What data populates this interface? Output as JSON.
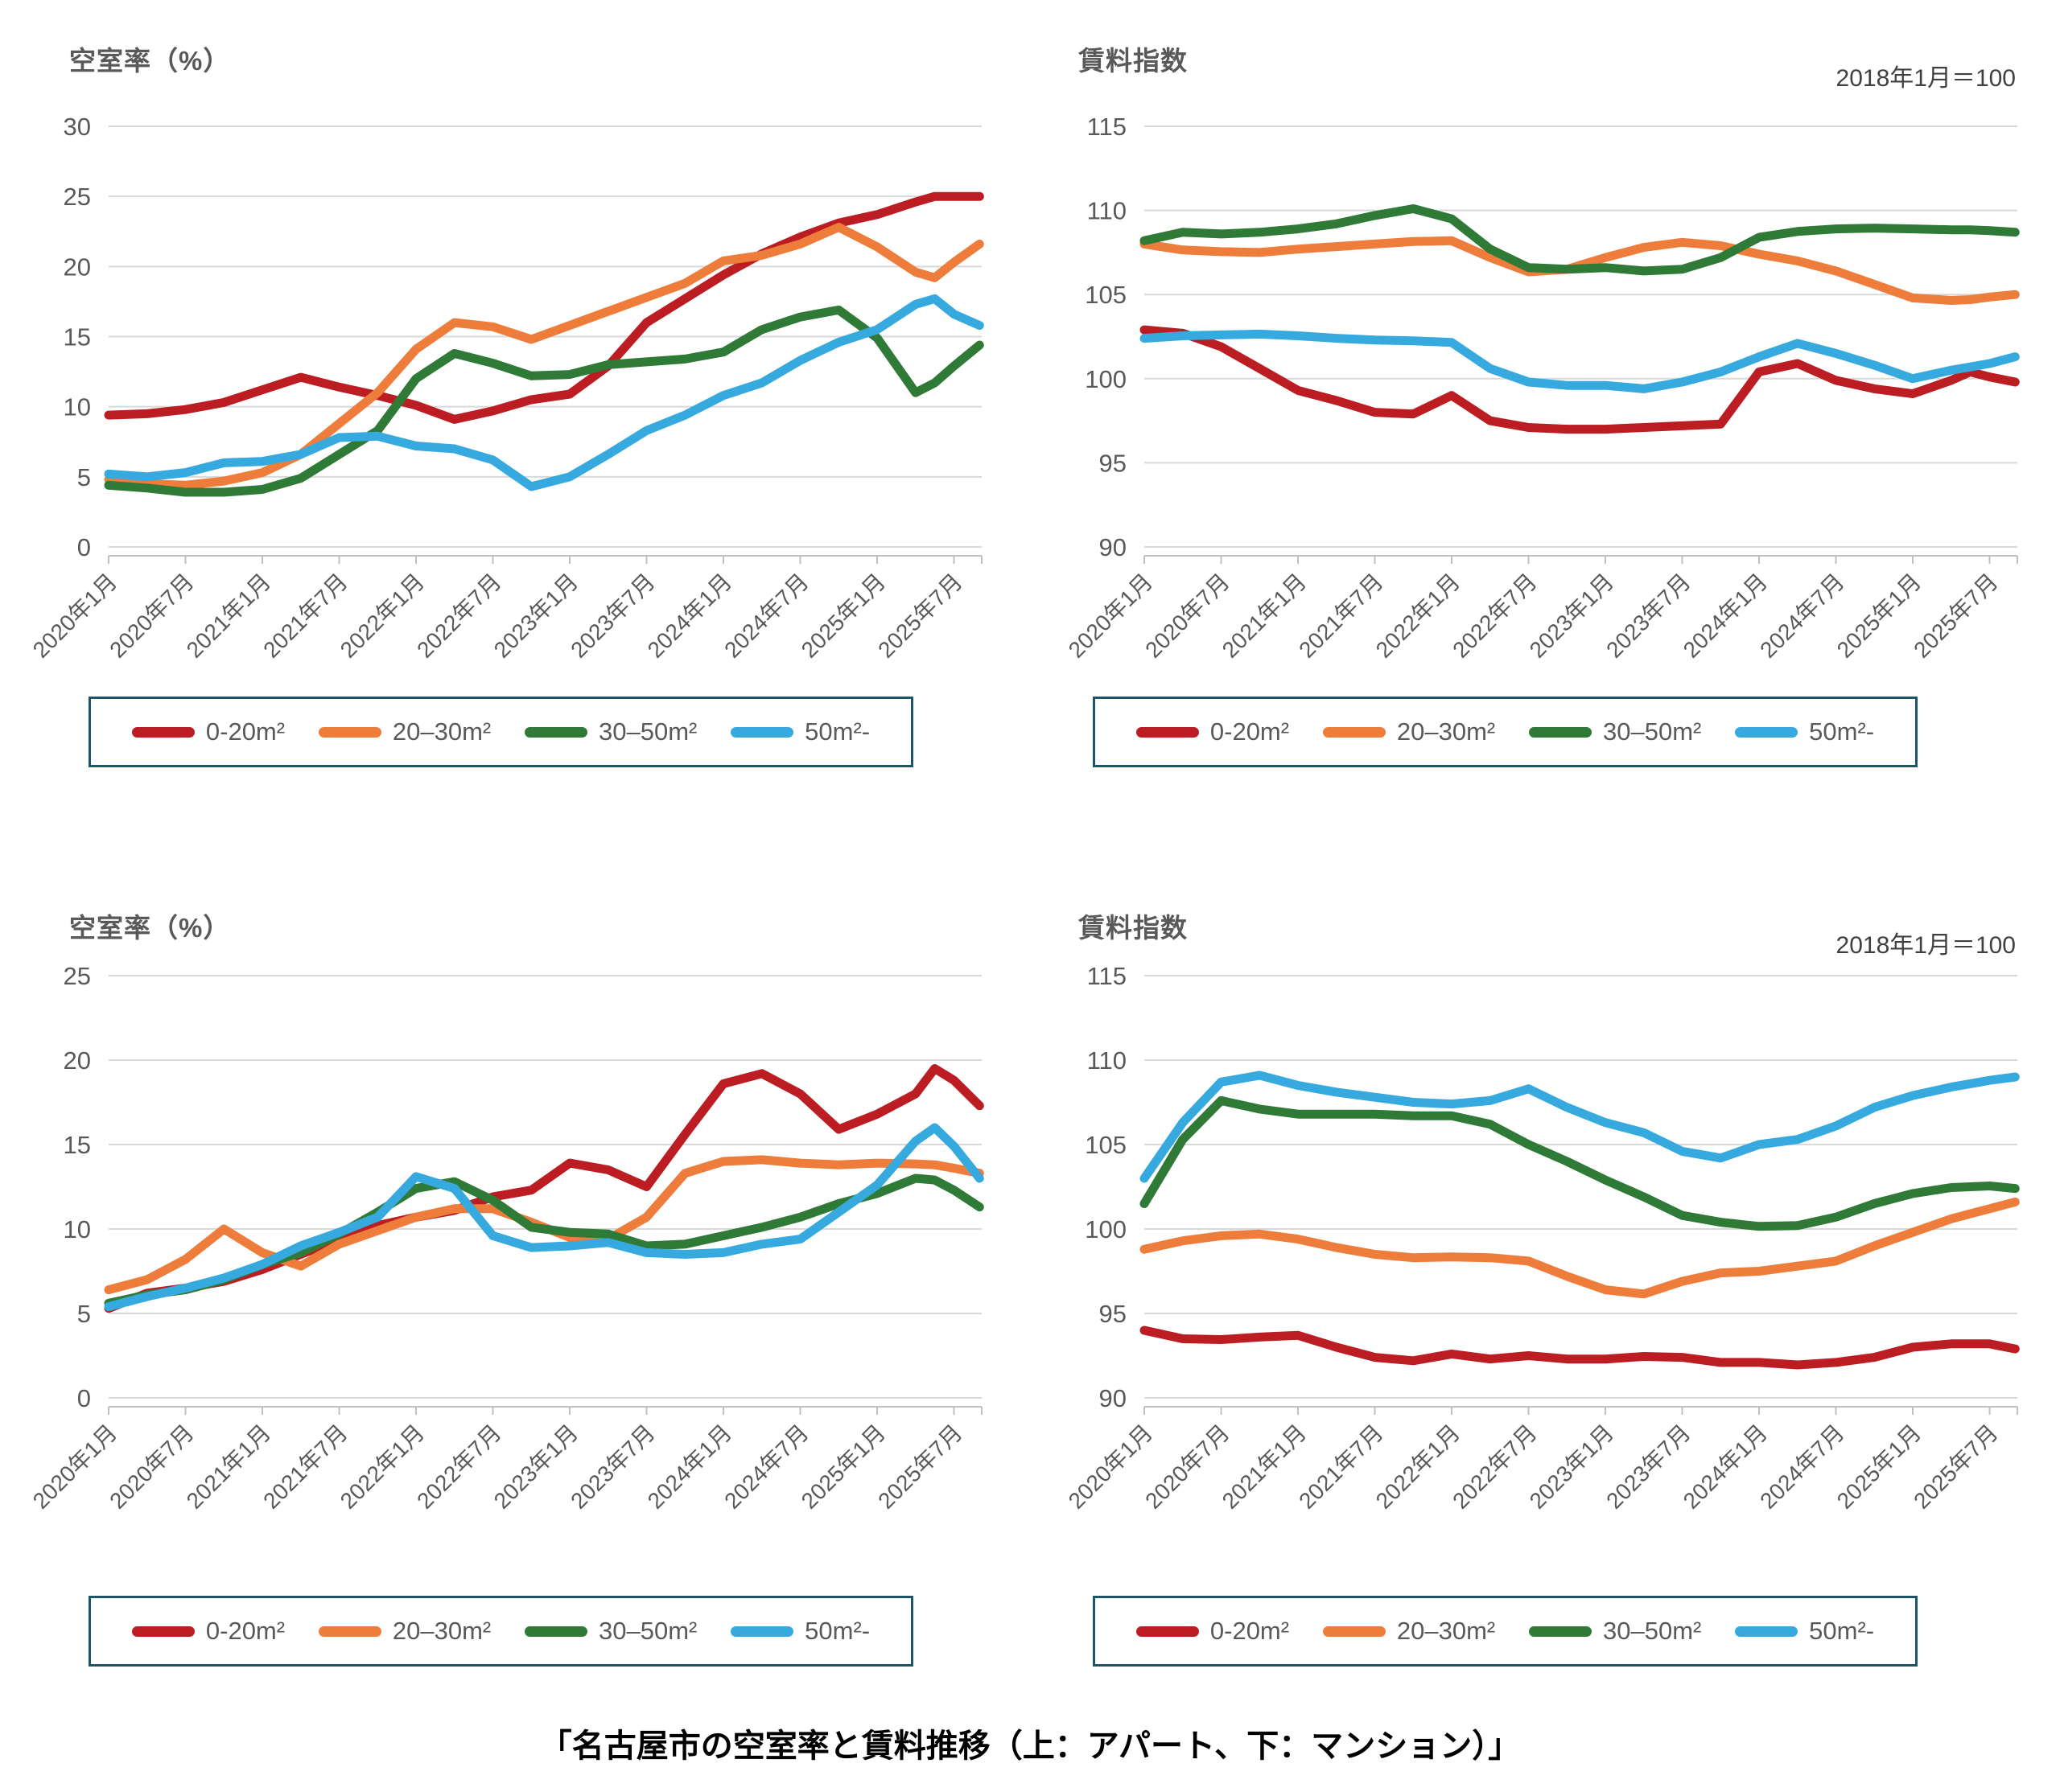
{
  "page": {
    "caption": "「名古屋市の空室率と賃料推移（上：アパート、下：マンション）」"
  },
  "colors": {
    "red": "#bb1d23",
    "orange": "#ee7c3b",
    "green": "#2e7a36",
    "blue": "#36a9de",
    "grid": "#d9d9d9",
    "axis": "#c0c0c0",
    "text": "#595959",
    "legend_border": "#1e5464"
  },
  "legend_items": [
    {
      "label": "0-20m²",
      "color": "red"
    },
    {
      "label": "20–30m²",
      "color": "orange"
    },
    {
      "label": "30–50m²",
      "color": "green"
    },
    {
      "label": "50m²-",
      "color": "blue"
    }
  ],
  "x_tick_labels": [
    "2020年1月",
    "2020年7月",
    "2021年1月",
    "2021年7月",
    "2022年1月",
    "2022年7月",
    "2023年1月",
    "2023年7月",
    "2024年1月",
    "2024年7月",
    "2025年1月",
    "2025年7月"
  ],
  "months": [
    0,
    3,
    6,
    9,
    12,
    15,
    18,
    21,
    24,
    27,
    30,
    33,
    36,
    39,
    42,
    45,
    48,
    51,
    54,
    57,
    60,
    63,
    64.5,
    66,
    68
  ],
  "chart_data": [
    {
      "id": "apartment-vacancy",
      "type": "line",
      "title": "空室率（%）",
      "annotation": "",
      "ylabel": "空室率（%）",
      "ylim": [
        0,
        30
      ],
      "ystep": 5,
      "grid": true,
      "legend_position": "bottom",
      "series": [
        {
          "name": "0-20m²",
          "color": "red",
          "values": [
            9.4,
            9.5,
            9.8,
            10.3,
            11.2,
            12.1,
            11.4,
            10.8,
            10.1,
            9.1,
            9.7,
            10.5,
            10.9,
            12.9,
            16.0,
            17.7,
            19.4,
            20.9,
            22.1,
            23.1,
            23.7,
            24.6,
            25.0,
            25.0,
            25.0
          ]
        },
        {
          "name": "20–30m²",
          "color": "orange",
          "values": [
            4.8,
            4.5,
            4.4,
            4.7,
            5.3,
            6.6,
            8.8,
            11.0,
            14.1,
            16.0,
            15.7,
            14.8,
            15.8,
            16.8,
            17.8,
            18.8,
            20.4,
            20.8,
            21.6,
            22.8,
            21.4,
            19.6,
            19.2,
            20.3,
            21.6
          ]
        },
        {
          "name": "30–50m²",
          "color": "green",
          "values": [
            4.4,
            4.2,
            3.9,
            3.9,
            4.1,
            4.9,
            6.6,
            8.3,
            12.0,
            13.8,
            13.1,
            12.2,
            12.3,
            13.0,
            13.2,
            13.4,
            13.9,
            15.5,
            16.4,
            16.9,
            14.9,
            11.0,
            11.7,
            12.9,
            14.4
          ]
        },
        {
          "name": "50m²-",
          "color": "blue",
          "values": [
            5.2,
            5.0,
            5.3,
            6.0,
            6.1,
            6.6,
            7.8,
            7.9,
            7.2,
            7.0,
            6.2,
            4.3,
            5.0,
            6.6,
            8.3,
            9.4,
            10.8,
            11.7,
            13.3,
            14.6,
            15.5,
            17.3,
            17.7,
            16.6,
            15.8
          ]
        }
      ]
    },
    {
      "id": "apartment-rent-index",
      "type": "line",
      "title": "賃料指数",
      "annotation": "2018年1月＝100",
      "ylabel": "賃料指数",
      "ylim": [
        90,
        115
      ],
      "ystep": 5,
      "grid": true,
      "legend_position": "bottom",
      "series": [
        {
          "name": "0-20m²",
          "color": "red",
          "values": [
            102.9,
            102.7,
            101.9,
            100.6,
            99.3,
            98.7,
            98.0,
            97.9,
            99.0,
            97.5,
            97.1,
            97.0,
            97.0,
            97.1,
            97.2,
            97.3,
            100.4,
            100.9,
            99.9,
            99.4,
            99.1,
            99.9,
            100.4,
            100.1,
            99.8
          ]
        },
        {
          "name": "20–30m²",
          "color": "orange",
          "values": [
            108.0,
            107.65,
            107.55,
            107.5,
            107.7,
            107.85,
            108.0,
            108.15,
            108.2,
            107.2,
            106.35,
            106.5,
            107.2,
            107.8,
            108.1,
            107.9,
            107.4,
            107.0,
            106.4,
            105.6,
            104.8,
            104.65,
            104.7,
            104.85,
            105.0
          ]
        },
        {
          "name": "30–50m²",
          "color": "green",
          "values": [
            108.2,
            108.7,
            108.6,
            108.7,
            108.9,
            109.2,
            109.7,
            110.1,
            109.5,
            107.7,
            106.6,
            106.5,
            106.6,
            106.4,
            106.5,
            107.2,
            108.4,
            108.75,
            108.9,
            108.95,
            108.9,
            108.85,
            108.85,
            108.8,
            108.7
          ]
        },
        {
          "name": "50m²-",
          "color": "blue",
          "values": [
            102.4,
            102.55,
            102.6,
            102.65,
            102.55,
            102.4,
            102.3,
            102.25,
            102.15,
            100.6,
            99.8,
            99.6,
            99.6,
            99.4,
            99.8,
            100.4,
            101.3,
            102.1,
            101.5,
            100.8,
            100.0,
            100.5,
            100.7,
            100.9,
            101.3
          ]
        }
      ]
    },
    {
      "id": "mansion-vacancy",
      "type": "line",
      "title": "空室率（%）",
      "annotation": "",
      "ylabel": "空室率（%）",
      "ylim": [
        0,
        25
      ],
      "ystep": 5,
      "grid": true,
      "legend_position": "bottom",
      "series": [
        {
          "name": "0-20m²",
          "color": "red",
          "values": [
            5.3,
            6.2,
            6.5,
            6.9,
            7.6,
            8.5,
            9.4,
            10.2,
            10.7,
            11.1,
            11.9,
            12.3,
            13.9,
            13.5,
            12.5,
            15.6,
            18.6,
            19.2,
            18.0,
            15.9,
            16.8,
            18.0,
            19.5,
            18.8,
            17.3
          ]
        },
        {
          "name": "20–30m²",
          "color": "orange",
          "values": [
            6.4,
            7.0,
            8.2,
            10.0,
            8.6,
            7.8,
            9.1,
            9.9,
            10.7,
            11.2,
            11.2,
            10.4,
            9.5,
            9.4,
            10.7,
            13.3,
            14.0,
            14.1,
            13.9,
            13.8,
            13.9,
            13.85,
            13.8,
            13.6,
            13.3
          ]
        },
        {
          "name": "30–50m²",
          "color": "green",
          "values": [
            5.6,
            6.1,
            6.4,
            7.0,
            7.9,
            8.6,
            9.7,
            11.0,
            12.4,
            12.8,
            11.7,
            10.1,
            9.8,
            9.7,
            9.0,
            9.1,
            9.6,
            10.1,
            10.7,
            11.5,
            12.1,
            13.0,
            12.9,
            12.3,
            11.3
          ]
        },
        {
          "name": "50m²-",
          "color": "blue",
          "values": [
            5.4,
            6.0,
            6.5,
            7.1,
            7.9,
            9.0,
            9.8,
            10.7,
            13.1,
            12.4,
            9.6,
            8.9,
            9.0,
            9.2,
            8.6,
            8.5,
            8.6,
            9.1,
            9.4,
            11.0,
            12.6,
            15.2,
            16.0,
            14.9,
            13.0
          ]
        }
      ]
    },
    {
      "id": "mansion-rent-index",
      "type": "line",
      "title": "賃料指数",
      "annotation": "2018年1月＝100",
      "ylabel": "賃料指数",
      "ylim": [
        90,
        115
      ],
      "ystep": 5,
      "grid": true,
      "legend_position": "bottom",
      "series": [
        {
          "name": "0-20m²",
          "color": "red",
          "values": [
            94.0,
            93.5,
            93.45,
            93.6,
            93.7,
            93.0,
            92.4,
            92.2,
            92.6,
            92.3,
            92.5,
            92.3,
            92.3,
            92.45,
            92.4,
            92.1,
            92.1,
            91.95,
            92.1,
            92.4,
            93.0,
            93.2,
            93.2,
            93.2,
            92.9
          ]
        },
        {
          "name": "20–30m²",
          "color": "orange",
          "values": [
            98.8,
            99.3,
            99.6,
            99.7,
            99.4,
            98.9,
            98.5,
            98.3,
            98.35,
            98.3,
            98.1,
            97.2,
            96.4,
            96.15,
            96.9,
            97.4,
            97.5,
            97.8,
            98.1,
            99.0,
            99.8,
            100.6,
            100.9,
            101.2,
            101.6
          ]
        },
        {
          "name": "30–50m²",
          "color": "green",
          "values": [
            101.5,
            105.3,
            107.6,
            107.1,
            106.8,
            106.8,
            106.8,
            106.7,
            106.7,
            106.2,
            105.0,
            104.0,
            102.9,
            101.9,
            100.8,
            100.4,
            100.15,
            100.2,
            100.7,
            101.5,
            102.1,
            102.45,
            102.5,
            102.55,
            102.4
          ]
        },
        {
          "name": "50m²-",
          "color": "blue",
          "values": [
            103.0,
            106.3,
            108.7,
            109.1,
            108.5,
            108.1,
            107.8,
            107.5,
            107.4,
            107.6,
            108.3,
            107.2,
            106.3,
            105.7,
            104.6,
            104.2,
            105.0,
            105.3,
            106.1,
            107.2,
            107.9,
            108.4,
            108.6,
            108.8,
            109.0
          ]
        }
      ]
    }
  ]
}
